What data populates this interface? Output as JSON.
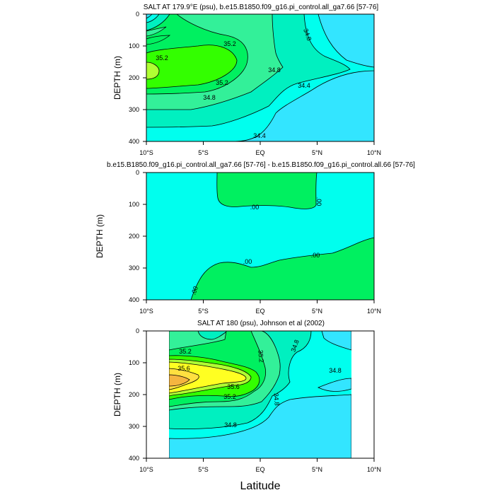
{
  "figure": {
    "xlabel": "Latitude"
  },
  "colors": {
    "cyan": "#33E5FF",
    "aqua": "#00FFEE",
    "teal": "#00F0C0",
    "mint": "#33F099",
    "green1": "#00F060",
    "green2": "#33FF00",
    "lime": "#B0FF33",
    "yellow": "#FFFF22",
    "gold": "#FFE040",
    "orange": "#F5B540"
  },
  "chart_data": [
    {
      "type": "contour",
      "title": "SALT AT 179.9°E (psu), b.e15.B1850.f09_g16.pi_control.all_ga7.66 [57-76]",
      "ylabel": "DEPTH (m)",
      "xlim": [
        -10,
        10
      ],
      "ylim": [
        400,
        0
      ],
      "xticks": [
        "10°S",
        "5°S",
        "EQ",
        "5°N",
        "10°N"
      ],
      "yticks": [
        "0",
        "100",
        "200",
        "300",
        "400"
      ],
      "contour_levels": [
        34.4,
        34.8,
        35.2
      ],
      "contour_labels": [
        {
          "text": "35.2",
          "lat": -2.6,
          "depth": 90
        },
        {
          "text": "35.2",
          "lat": -8.5,
          "depth": 140
        },
        {
          "text": "35.2",
          "lat": -3.3,
          "depth": 222
        },
        {
          "text": "34.8",
          "lat": 3.9,
          "depth": 65
        },
        {
          "text": "34.8",
          "lat": 1.2,
          "depth": 175
        },
        {
          "text": "34.8",
          "lat": -4.4,
          "depth": 262
        },
        {
          "text": "34.4",
          "lat": 3.6,
          "depth": 225
        },
        {
          "text": "34.4",
          "lat": 0,
          "depth": 385
        }
      ]
    },
    {
      "type": "contour",
      "title": "b.e15.B1850.f09_g16.pi_control.all_ga7.66 [57-76] - b.e15.B1850.f09_g16.pi_control.all.66 [57-76]",
      "ylabel": "DEPTH (m)",
      "xlim": [
        -10,
        10
      ],
      "ylim": [
        400,
        0
      ],
      "xticks": [
        "10°S",
        "5°S",
        "EQ",
        "5°N",
        "10°N"
      ],
      "yticks": [
        "0",
        "100",
        "200",
        "300",
        "400"
      ],
      "contour_labels": [
        {
          "text": ".00",
          "lat": -0.5,
          "depth": 110
        },
        {
          "text": ".00",
          "lat": 5.0,
          "depth": 95
        },
        {
          "text": ".00",
          "lat": -1.0,
          "depth": 285
        },
        {
          "text": ".00",
          "lat": 4.9,
          "depth": 265
        },
        {
          "text": ".00",
          "lat": -5.5,
          "depth": 375
        }
      ]
    },
    {
      "type": "contour",
      "title": "SALT AT 180 (psu), Johnson et al (2002)",
      "ylabel": "DEPTH (m)",
      "xlim": [
        -10,
        10
      ],
      "ylim": [
        400,
        0
      ],
      "data_extent_lat": [
        -8,
        8
      ],
      "xticks": [
        "10°S",
        "5°S",
        "EQ",
        "5°N",
        "10°N"
      ],
      "yticks": [
        "0",
        "100",
        "200",
        "300",
        "400"
      ],
      "contour_levels": [
        34.8,
        35.2,
        35.6
      ],
      "contour_labels": [
        {
          "text": "35.2",
          "lat": -7.1,
          "depth": 65
        },
        {
          "text": "35.2",
          "lat": -0.2,
          "depth": 80
        },
        {
          "text": "35.6",
          "lat": -6.0,
          "depth": 125
        },
        {
          "text": "35.6",
          "lat": -2.5,
          "depth": 180
        },
        {
          "text": "35.2",
          "lat": -2.7,
          "depth": 210
        },
        {
          "text": "34.8",
          "lat": 3.1,
          "depth": 60
        },
        {
          "text": "34.8",
          "lat": 6.5,
          "depth": 140
        },
        {
          "text": "34.8",
          "lat": 1.2,
          "depth": 215
        },
        {
          "text": "34.8",
          "lat": -2.6,
          "depth": 300
        }
      ]
    }
  ]
}
